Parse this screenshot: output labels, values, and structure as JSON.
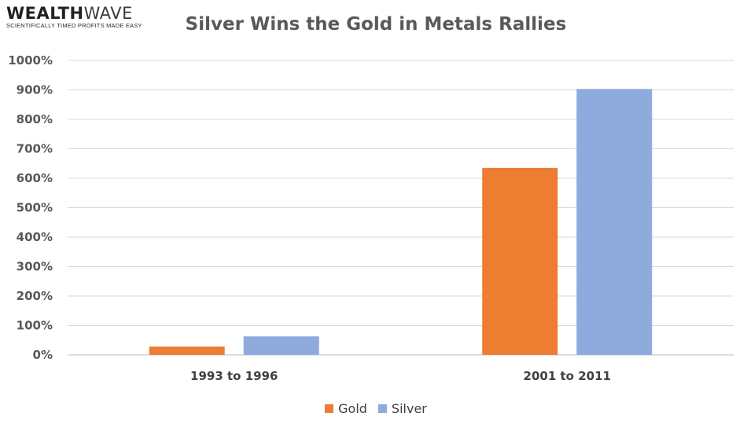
{
  "logo": {
    "part_bold": "WEALTH",
    "part_light": "WAVE",
    "tagline": "SCIENTIFICALLY TIMED PROFITS MADE EASY"
  },
  "chart_data": {
    "type": "bar",
    "title": "Silver Wins the Gold in Metals Rallies",
    "categories": [
      "1993 to 1996",
      "2001 to 2011"
    ],
    "series": [
      {
        "name": "Gold",
        "color": "#ED7D31",
        "values": [
          28,
          635
        ]
      },
      {
        "name": "Silver",
        "color": "#8FAADC",
        "values": [
          63,
          903
        ]
      }
    ],
    "ylim": [
      0,
      1000
    ],
    "yticks": [
      "0%",
      "100%",
      "200%",
      "300%",
      "400%",
      "500%",
      "600%",
      "700%",
      "800%",
      "900%",
      "1000%"
    ],
    "grid": true,
    "legend": "bottom-center"
  }
}
